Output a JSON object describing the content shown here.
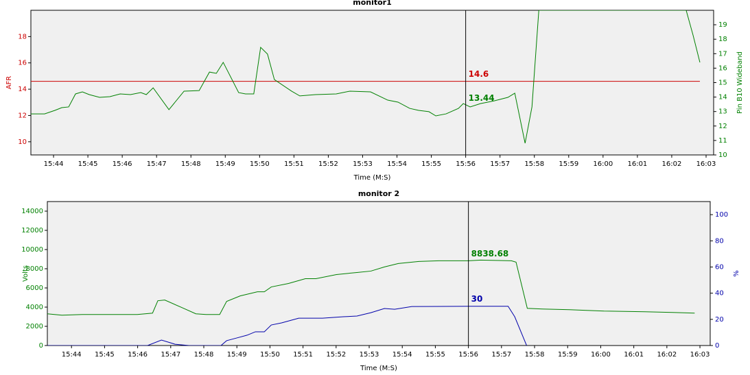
{
  "chart_data": [
    {
      "type": "line",
      "title": "monitor1",
      "xlabel": "Time (M:S)",
      "ylabel": "AFR",
      "y2label": "Pin B10 Wideband",
      "ycolor": "#cc0000",
      "y2color": "#008000",
      "xlim": [
        943.34,
        963.22
      ],
      "xticks": [
        {
          "value": 944,
          "label": "15:44"
        },
        {
          "value": 945,
          "label": "15:45"
        },
        {
          "value": 946,
          "label": "15:46"
        },
        {
          "value": 947,
          "label": "15:47"
        },
        {
          "value": 948,
          "label": "15:48"
        },
        {
          "value": 949,
          "label": "15:49"
        },
        {
          "value": 950,
          "label": "15:50"
        },
        {
          "value": 951,
          "label": "15:51"
        },
        {
          "value": 952,
          "label": "15:52"
        },
        {
          "value": 953,
          "label": "15:53"
        },
        {
          "value": 954,
          "label": "15:54"
        },
        {
          "value": 955,
          "label": "15:55"
        },
        {
          "value": 956,
          "label": "15:56"
        },
        {
          "value": 957,
          "label": "15:57"
        },
        {
          "value": 958,
          "label": "15:58"
        },
        {
          "value": 959,
          "label": "15:59"
        },
        {
          "value": 960,
          "label": "16:00"
        },
        {
          "value": 961,
          "label": "16:01"
        },
        {
          "value": 962,
          "label": "16:02"
        },
        {
          "value": 963,
          "label": "16:03"
        }
      ],
      "ylim": [
        9,
        20
      ],
      "yticks": [
        10,
        12,
        14,
        16,
        18
      ],
      "y2lim": [
        10,
        20
      ],
      "y2ticks": [
        10,
        11,
        12,
        13,
        14,
        15,
        16,
        17,
        18,
        19
      ],
      "cursor_x": 956,
      "annotations": [
        {
          "text": "14.6",
          "x": 956,
          "y": 14.6,
          "axis": "y",
          "color": "#cc0000"
        },
        {
          "text": "13.44",
          "x": 956,
          "y": 13.44,
          "axis": "y2",
          "color": "#008000"
        }
      ],
      "series": [
        {
          "color": "#cc0000",
          "axis": "y",
          "x": [
            943.34,
            962.82
          ],
          "values": [
            14.6,
            14.6
          ]
        },
        {
          "color": "#008000",
          "axis": "y2",
          "x": [
            943.34,
            943.74,
            944.04,
            944.24,
            944.44,
            944.64,
            944.84,
            945.04,
            945.34,
            945.64,
            945.94,
            946.24,
            946.54,
            946.7,
            946.9,
            947.36,
            947.8,
            948.24,
            948.54,
            948.74,
            948.94,
            949.39,
            949.59,
            949.83,
            950.03,
            950.23,
            950.43,
            950.93,
            951.17,
            951.63,
            952.23,
            952.63,
            953.23,
            953.73,
            954.03,
            954.37,
            954.63,
            954.93,
            955.13,
            955.43,
            955.79,
            955.93,
            956.13,
            956.43,
            956.83,
            957.23,
            957.43,
            957.73,
            957.93,
            958.13,
            958.83,
            959.62,
            960.82,
            962.42,
            962.62,
            962.82
          ],
          "values": [
            12.84,
            12.84,
            13.08,
            13.27,
            13.32,
            14.22,
            14.36,
            14.17,
            13.98,
            14.03,
            14.22,
            14.17,
            14.31,
            14.17,
            14.64,
            13.13,
            14.41,
            14.45,
            15.73,
            15.64,
            16.4,
            14.31,
            14.22,
            14.22,
            17.44,
            16.97,
            15.21,
            14.41,
            14.08,
            14.17,
            14.22,
            14.41,
            14.36,
            13.79,
            13.65,
            13.22,
            13.08,
            12.99,
            12.7,
            12.84,
            13.22,
            13.55,
            13.32,
            13.55,
            13.74,
            13.98,
            14.27,
            10.81,
            13.32,
            20,
            20,
            20,
            20,
            20,
            18.29,
            16.4
          ]
        }
      ]
    },
    {
      "type": "line",
      "title": "monitor 2",
      "xlabel": "Time (M:S)",
      "ylabel": "Volts",
      "y2label": "%",
      "ycolor": "#008000",
      "y2color": "#0000aa",
      "xlim": [
        943.27,
        963.31
      ],
      "xticks": [
        {
          "value": 944,
          "label": "15:44"
        },
        {
          "value": 945,
          "label": "15:45"
        },
        {
          "value": 946,
          "label": "15:46"
        },
        {
          "value": 947,
          "label": "15:47"
        },
        {
          "value": 948,
          "label": "15:48"
        },
        {
          "value": 949,
          "label": "15:49"
        },
        {
          "value": 950,
          "label": "15:50"
        },
        {
          "value": 951,
          "label": "15:51"
        },
        {
          "value": 952,
          "label": "15:52"
        },
        {
          "value": 953,
          "label": "15:53"
        },
        {
          "value": 954,
          "label": "15:54"
        },
        {
          "value": 955,
          "label": "15:55"
        },
        {
          "value": 956,
          "label": "15:56"
        },
        {
          "value": 957,
          "label": "15:57"
        },
        {
          "value": 958,
          "label": "15:58"
        },
        {
          "value": 959,
          "label": "15:59"
        },
        {
          "value": 960,
          "label": "16:00"
        },
        {
          "value": 961,
          "label": "16:01"
        },
        {
          "value": 962,
          "label": "16:02"
        },
        {
          "value": 963,
          "label": "16:03"
        }
      ],
      "ylim": [
        0,
        15000
      ],
      "yticks": [
        0,
        2000,
        4000,
        6000,
        8000,
        10000,
        12000,
        14000
      ],
      "y2lim": [
        0,
        110
      ],
      "y2ticks": [
        0,
        20,
        40,
        60,
        80,
        100
      ],
      "cursor_x": 956,
      "annotations": [
        {
          "text": "8838.68",
          "x": 956,
          "y": 8838.68,
          "axis": "y",
          "color": "#008000"
        },
        {
          "text": "30",
          "x": 956,
          "y": 30,
          "axis": "y2",
          "color": "#0000aa"
        }
      ],
      "series": [
        {
          "color": "#008000",
          "axis": "y",
          "x": [
            943.27,
            943.71,
            944.33,
            945.99,
            946.45,
            946.61,
            946.82,
            947.34,
            947.76,
            948.07,
            948.48,
            948.69,
            949.1,
            949.62,
            949.83,
            950.04,
            950.56,
            951.07,
            951.39,
            952.01,
            952.63,
            953.05,
            953.46,
            953.88,
            954.5,
            955.12,
            956.01,
            956.37,
            957.3,
            957.44,
            957.78,
            958.23,
            959.06,
            960.1,
            961.34,
            962.17,
            962.84
          ],
          "values": [
            3303,
            3159,
            3231,
            3231,
            3375,
            4667,
            4739,
            3949,
            3303,
            3231,
            3231,
            4595,
            5170,
            5600,
            5600,
            6103,
            6462,
            6965,
            6965,
            7395,
            7611,
            7754,
            8185,
            8544,
            8760,
            8831,
            8831,
            8903,
            8831,
            8688,
            3877,
            3805,
            3734,
            3590,
            3518,
            3446,
            3375
          ]
        },
        {
          "color": "#0000aa",
          "axis": "y2",
          "x": [
            943.27,
            946.3,
            946.72,
            947.13,
            947.55,
            948.52,
            948.69,
            949.0,
            949.31,
            949.56,
            949.83,
            950.04,
            950.35,
            950.87,
            951.59,
            952.22,
            952.63,
            953.05,
            953.46,
            953.77,
            954.29,
            956.01,
            957.2,
            957.4,
            957.76
          ],
          "values": [
            0,
            0,
            4.2,
            1,
            0,
            0,
            3.7,
            5.8,
            7.9,
            10.5,
            10.5,
            15.7,
            17.3,
            20.9,
            20.9,
            22,
            22.5,
            25.1,
            28.3,
            27.7,
            29.8,
            30,
            30,
            22,
            0
          ]
        }
      ]
    }
  ]
}
